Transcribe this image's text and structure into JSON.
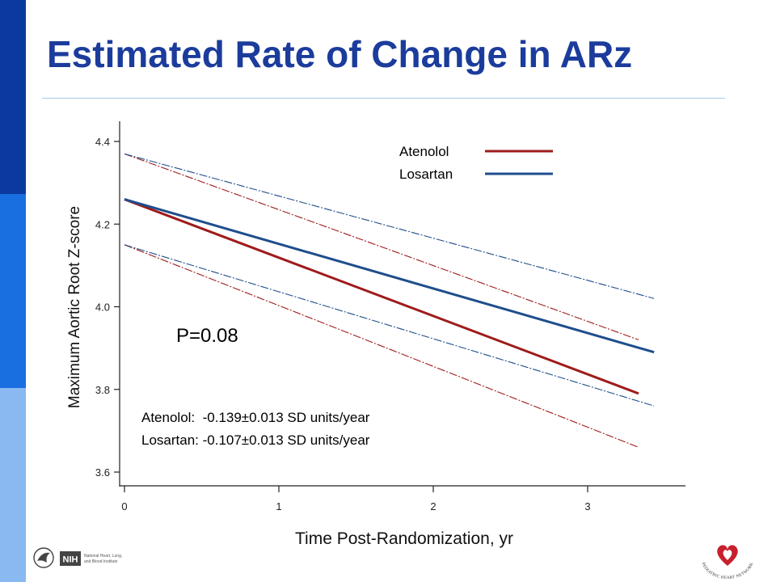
{
  "slide": {
    "title": "Estimated Rate of Change in ARz",
    "sidebar_colors": [
      "#0a3a9e",
      "#1a6fe0",
      "#8ab8f0"
    ]
  },
  "chart_data": {
    "type": "line",
    "title": "Estimated Rate of Change in ARz",
    "xlabel": "Time Post-Randomization, yr",
    "ylabel": "Maximum Aortic Root Z-score",
    "xlim": [
      0,
      3.6
    ],
    "ylim": [
      3.57,
      4.46
    ],
    "x_ticks": [
      0,
      1,
      2,
      3
    ],
    "y_ticks": [
      3.6,
      3.8,
      4.0,
      4.2,
      4.4
    ],
    "x_tick_labels": [
      "0",
      "1",
      "2",
      "3"
    ],
    "y_tick_labels": [
      "3.6",
      "3.8",
      "4.0",
      "4.2",
      "4.4"
    ],
    "grid": false,
    "legend_position": "top-right",
    "series": [
      {
        "name": "Atenolol",
        "color": "#9e1b1b",
        "x": [
          0,
          3.33
        ],
        "y": [
          4.26,
          3.79
        ],
        "ci_lower": {
          "x": [
            0,
            3.33
          ],
          "y": [
            4.15,
            3.66
          ]
        },
        "ci_upper": {
          "x": [
            0,
            3.33
          ],
          "y": [
            4.37,
            3.92
          ]
        }
      },
      {
        "name": "Losartan",
        "color": "#1f4e8c",
        "x": [
          0,
          3.43
        ],
        "y": [
          4.26,
          3.89
        ],
        "ci_lower": {
          "x": [
            0,
            3.43
          ],
          "y": [
            4.15,
            3.76
          ]
        },
        "ci_upper": {
          "x": [
            0,
            3.43
          ],
          "y": [
            4.37,
            4.02
          ]
        }
      }
    ],
    "annotations": {
      "p_value": "P=0.08",
      "rate_atenolol": "Atenolol:  -0.139±0.013 SD units/year",
      "rate_losartan": "Losartan: -0.107±0.013 SD units/year"
    }
  },
  "footer": {
    "nih_badge": "NIH",
    "nih_text_1": "National Heart, Lung,",
    "nih_text_2": "and Blood Institute",
    "network_text": "PEDIATRIC HEART NETWORK"
  }
}
